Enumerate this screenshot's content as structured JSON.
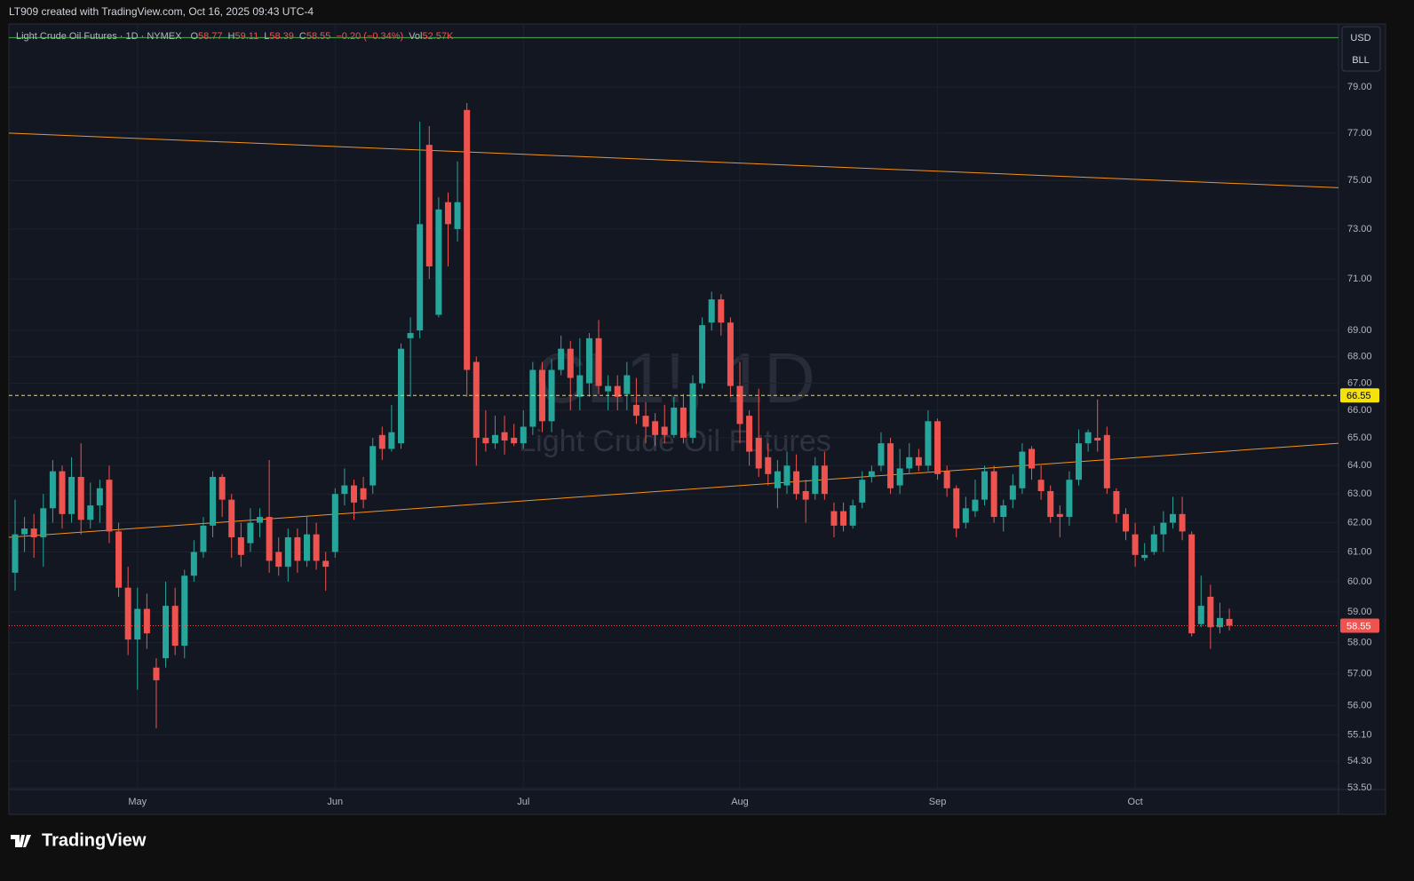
{
  "header": {
    "caption": "LT909 created with TradingView.com, Oct 16, 2025 09:43 UTC-4"
  },
  "footer": {
    "logo": "TradingView"
  },
  "scale_buttons": [
    "USD",
    "BLL"
  ],
  "chart_data": {
    "type": "candlestick",
    "title": "Light Crude Oil Futures · 1D · NYMEX",
    "legend_items": [
      {
        "label": "O",
        "value": 58.77
      },
      {
        "label": "H",
        "value": 59.11
      },
      {
        "label": "L",
        "value": 58.39
      },
      {
        "label": "C",
        "value": 58.55
      }
    ],
    "change": "−0.20 (−0.34%)",
    "volume": {
      "label": "Vol",
      "value": "52.57K"
    },
    "watermark": {
      "symbol": "CL1!, 1D",
      "name": "Light Crude Oil Futures"
    },
    "up_color": "#26a69a",
    "down_color": "#ef5350",
    "log": true,
    "grid": true,
    "open": [
      60.3,
      61.6,
      61.8,
      61.5,
      62.5,
      63.8,
      62.3,
      63.6,
      62.1,
      62.6,
      63.5,
      61.7,
      59.8,
      58.1,
      59.1,
      57.2,
      57.5,
      59.2,
      57.9,
      60.2,
      61.0,
      61.9,
      63.6,
      62.8,
      61.5,
      61.3,
      62.0,
      62.2,
      61.0,
      60.5,
      61.5,
      60.7,
      61.6,
      60.7,
      61.0,
      63.0,
      63.3,
      63.2,
      63.3,
      65.1,
      64.6,
      64.8,
      68.7,
      69.0,
      76.5,
      69.6,
      74.1,
      73.0,
      78.0,
      67.8,
      65.0,
      64.8,
      65.2,
      65.0,
      64.8,
      65.4,
      67.5,
      65.6,
      67.5,
      68.3,
      66.5,
      67.0,
      68.7,
      66.7,
      66.9,
      66.6,
      66.2,
      65.8,
      65.6,
      65.4,
      65.1,
      66.1,
      65.0,
      67.0,
      69.3,
      70.2,
      69.3,
      66.9,
      65.8,
      65.0,
      64.3,
      63.2,
      63.3,
      63.8,
      63.1,
      63.0,
      64.0,
      62.4,
      62.4,
      61.9,
      62.7,
      63.6,
      64.0,
      64.8,
      63.3,
      63.9,
      64.3,
      64.0,
      65.6,
      63.8,
      63.2,
      62.0,
      62.4,
      62.8,
      63.8,
      62.2,
      62.8,
      63.2,
      64.6,
      63.5,
      63.1,
      62.3,
      62.2,
      63.5,
      64.8,
      65.0,
      65.1,
      63.1,
      62.3,
      61.6,
      60.8,
      61.0,
      61.6,
      62.0,
      62.3,
      61.6,
      58.6,
      59.5,
      58.5,
      58.77
    ],
    "high": [
      62.8,
      62.2,
      62.3,
      63.0,
      64.2,
      64.0,
      64.3,
      64.8,
      63.4,
      63.5,
      64.0,
      62.0,
      60.5,
      59.8,
      59.6,
      57.5,
      60.0,
      59.8,
      60.4,
      61.4,
      62.2,
      63.8,
      63.7,
      63.0,
      62.0,
      62.5,
      62.5,
      64.2,
      61.5,
      61.8,
      61.8,
      62.2,
      62.0,
      61.0,
      63.2,
      63.9,
      63.5,
      63.6,
      65.0,
      65.4,
      66.2,
      68.5,
      69.5,
      77.5,
      77.3,
      74.3,
      74.5,
      75.8,
      78.3,
      68.0,
      66.0,
      65.8,
      65.8,
      65.5,
      66.0,
      67.8,
      67.8,
      67.9,
      68.8,
      68.6,
      68.7,
      68.9,
      69.4,
      67.3,
      67.3,
      67.8,
      67.2,
      66.3,
      65.9,
      66.2,
      66.5,
      66.6,
      67.3,
      69.5,
      70.5,
      70.4,
      69.5,
      67.8,
      66.0,
      66.8,
      64.8,
      64.2,
      64.5,
      64.4,
      63.5,
      64.3,
      64.5,
      62.7,
      62.7,
      62.8,
      63.8,
      64.0,
      65.2,
      65.0,
      64.6,
      64.8,
      64.6,
      66.0,
      65.7,
      64.0,
      63.3,
      62.9,
      63.5,
      64.0,
      64.0,
      62.8,
      63.7,
      64.8,
      64.7,
      64.0,
      63.3,
      62.6,
      63.8,
      65.3,
      65.3,
      66.4,
      65.4,
      63.2,
      62.5,
      62.0,
      61.3,
      61.9,
      62.4,
      62.9,
      62.9,
      61.7,
      60.2,
      59.9,
      59.3,
      59.11
    ],
    "low": [
      59.7,
      61.0,
      60.8,
      60.5,
      62.0,
      61.8,
      62.0,
      61.6,
      61.8,
      62.0,
      61.3,
      59.5,
      57.6,
      56.5,
      57.8,
      55.3,
      57.2,
      57.6,
      57.5,
      60.0,
      60.8,
      61.5,
      62.2,
      60.8,
      60.5,
      61.0,
      61.5,
      60.3,
      60.2,
      60.0,
      60.3,
      60.5,
      60.4,
      59.7,
      60.8,
      62.6,
      62.1,
      62.5,
      63.0,
      64.2,
      64.5,
      64.6,
      66.5,
      68.7,
      71.0,
      69.5,
      71.5,
      72.5,
      66.5,
      64.0,
      64.5,
      64.6,
      64.4,
      64.7,
      64.6,
      65.1,
      65.2,
      65.2,
      67.3,
      66.0,
      66.0,
      66.5,
      66.6,
      66.0,
      66.0,
      66.0,
      65.5,
      64.8,
      64.7,
      64.8,
      65.0,
      64.8,
      64.8,
      66.8,
      69.0,
      68.8,
      66.5,
      64.8,
      64.0,
      63.6,
      63.3,
      62.5,
      63.0,
      62.8,
      62.0,
      62.8,
      62.8,
      61.5,
      61.7,
      61.8,
      62.5,
      63.4,
      63.8,
      63.0,
      63.0,
      63.7,
      63.8,
      63.8,
      63.5,
      62.9,
      61.5,
      61.8,
      62.2,
      62.6,
      62.0,
      61.7,
      62.5,
      63.0,
      63.5,
      62.8,
      62.0,
      61.5,
      61.9,
      63.3,
      64.5,
      64.5,
      63.0,
      62.0,
      61.4,
      60.5,
      60.7,
      60.9,
      61.0,
      61.8,
      61.4,
      58.2,
      58.5,
      57.8,
      58.3,
      58.39
    ],
    "close": [
      61.6,
      61.8,
      61.5,
      62.5,
      63.8,
      62.3,
      63.6,
      62.1,
      62.6,
      63.2,
      61.7,
      59.8,
      58.1,
      59.1,
      58.3,
      56.8,
      59.2,
      57.9,
      60.2,
      61.0,
      61.9,
      63.6,
      62.8,
      61.5,
      60.9,
      62.0,
      62.2,
      60.7,
      60.5,
      61.5,
      60.7,
      61.6,
      60.7,
      60.5,
      63.0,
      63.3,
      62.7,
      62.8,
      64.7,
      64.6,
      65.2,
      68.3,
      68.9,
      73.2,
      71.5,
      73.8,
      73.2,
      74.1,
      67.5,
      65.0,
      64.8,
      65.1,
      64.9,
      64.8,
      65.4,
      67.5,
      65.6,
      67.5,
      68.3,
      67.2,
      67.3,
      68.7,
      66.9,
      66.9,
      66.5,
      67.3,
      65.8,
      65.4,
      65.1,
      65.1,
      66.1,
      65.0,
      67.0,
      69.2,
      70.2,
      69.3,
      66.9,
      65.5,
      64.5,
      63.9,
      63.7,
      63.8,
      64.0,
      63.0,
      62.8,
      64.0,
      63.0,
      61.9,
      61.9,
      62.6,
      63.5,
      63.8,
      64.8,
      63.2,
      63.9,
      64.3,
      64.0,
      65.6,
      63.7,
      63.2,
      61.8,
      62.5,
      62.8,
      63.8,
      62.2,
      62.6,
      63.3,
      64.5,
      63.9,
      63.1,
      62.2,
      62.2,
      63.5,
      64.8,
      65.2,
      64.9,
      63.2,
      62.3,
      61.7,
      60.9,
      60.9,
      61.6,
      62.0,
      62.3,
      61.7,
      58.3,
      59.2,
      58.5,
      58.8,
      58.55
    ],
    "xlim": [
      -0.66,
      140.6
    ],
    "xticks": [
      {
        "value": 13,
        "label": "May"
      },
      {
        "value": 34,
        "label": "Jun"
      },
      {
        "value": 54,
        "label": "Jul"
      },
      {
        "value": 77,
        "label": "Aug"
      },
      {
        "value": 98,
        "label": "Sep"
      },
      {
        "value": 119,
        "label": "Oct"
      }
    ],
    "ylim": [
      53.45,
      81.82
    ],
    "yticks": [
      {
        "value": 79,
        "label": "79.00"
      },
      {
        "value": 77,
        "label": "77.00"
      },
      {
        "value": 75,
        "label": "75.00"
      },
      {
        "value": 73,
        "label": "73.00"
      },
      {
        "value": 71,
        "label": "71.00"
      },
      {
        "value": 69,
        "label": "69.00"
      },
      {
        "value": 68,
        "label": "68.00"
      },
      {
        "value": 67,
        "label": "67.00"
      },
      {
        "value": 66,
        "label": "66.00"
      },
      {
        "value": 65,
        "label": "65.00"
      },
      {
        "value": 64,
        "label": "64.00"
      },
      {
        "value": 63,
        "label": "63.00"
      },
      {
        "value": 62,
        "label": "62.00"
      },
      {
        "value": 61,
        "label": "61.00"
      },
      {
        "value": 60,
        "label": "60.00"
      },
      {
        "value": 59,
        "label": "59.00"
      },
      {
        "value": 58,
        "label": "58.00"
      },
      {
        "value": 57,
        "label": "57.00"
      },
      {
        "value": 56,
        "label": "56.00"
      },
      {
        "value": 55.1,
        "label": "55.10"
      },
      {
        "value": 54.3,
        "label": "54.30"
      },
      {
        "value": 53.5,
        "label": "53.50"
      }
    ],
    "hlines": [
      {
        "value": 81.2,
        "color": "#4caf50",
        "dash": "solid",
        "badge": false
      },
      {
        "value": 66.55,
        "color": "#f5e20c",
        "dash": "dashed",
        "badge": true
      },
      {
        "value": 58.55,
        "color": "#ef5350",
        "dash": "dotted",
        "badge": true
      }
    ],
    "trendlines": [
      {
        "points": [
          [
            -0.66,
            77.0
          ],
          [
            140.6,
            74.7
          ]
        ],
        "color": "#f7931a"
      },
      {
        "points": [
          [
            -0.66,
            61.5
          ],
          [
            140.6,
            64.8
          ]
        ],
        "color": "#f7931a"
      }
    ]
  }
}
